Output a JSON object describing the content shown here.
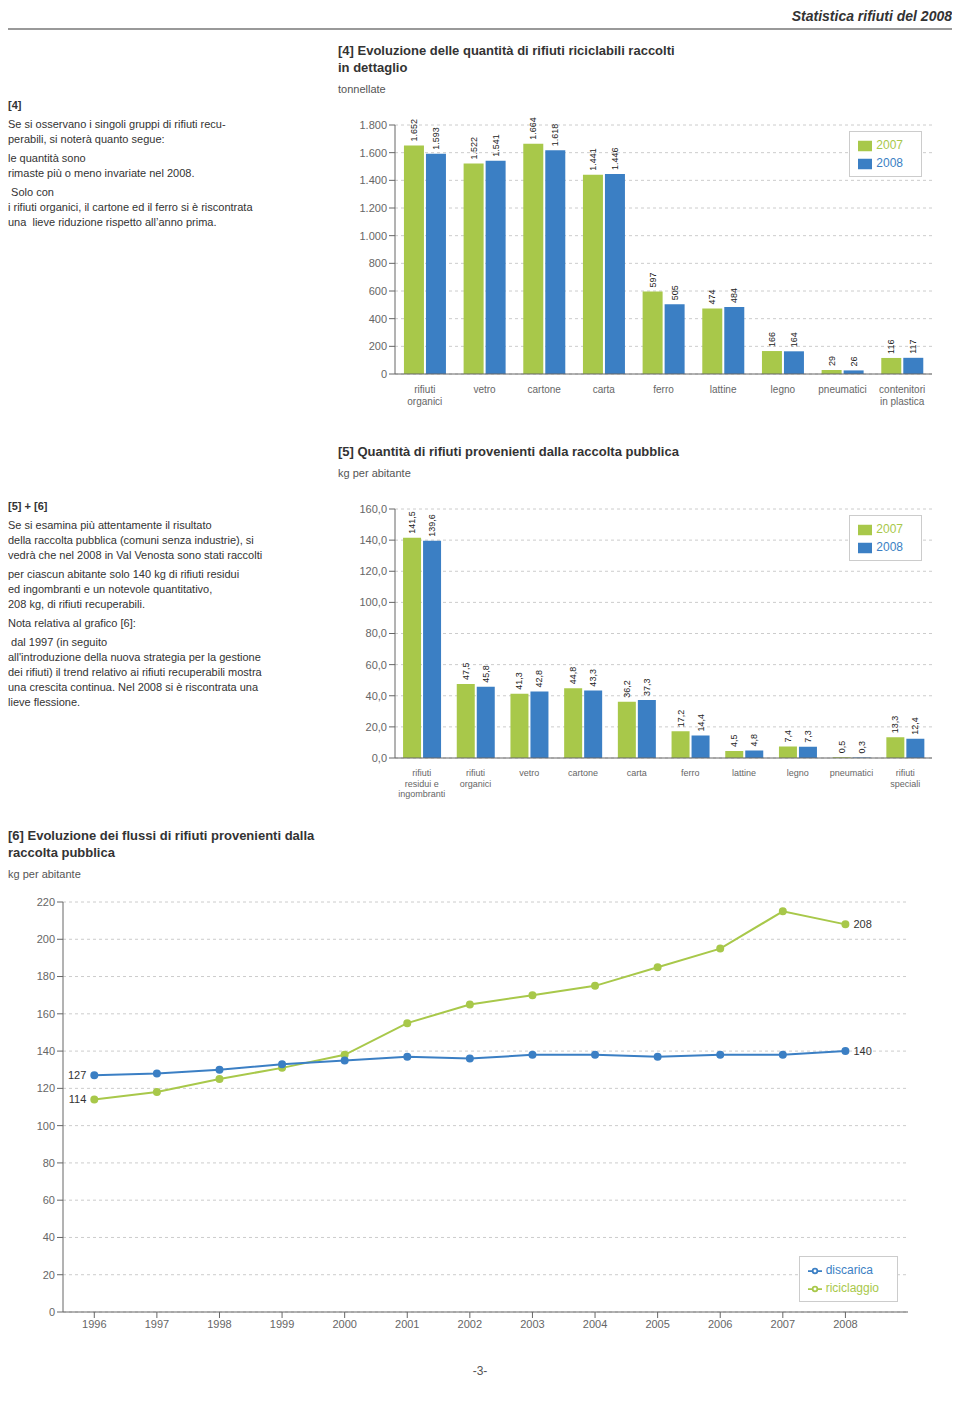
{
  "chart_data": [
    {
      "type": "bar",
      "title": "[4] Evoluzione delle quantità di rifiuti riciclabili raccolti\nin dettaglio",
      "ylabel": "tonnellate",
      "categories": [
        "rifiuti\norganici",
        "vetro",
        "cartone",
        "carta",
        "ferro",
        "lattine",
        "legno",
        "pneumatici",
        "contenitori\nin plastica"
      ],
      "series": [
        {
          "name": "2007",
          "color": "#a8c84a",
          "values": [
            1652,
            1522,
            1664,
            1441,
            597,
            474,
            166,
            29,
            116
          ],
          "value_labels": [
            "1.652",
            "1.522",
            "1.664",
            "1.441",
            "597",
            "474",
            "166",
            "29",
            "116"
          ]
        },
        {
          "name": "2008",
          "color": "#3b7fc4",
          "values": [
            1593,
            1541,
            1618,
            1446,
            505,
            484,
            164,
            26,
            117
          ],
          "value_labels": [
            "1.593",
            "1.541",
            "1.618",
            "1.446",
            "505",
            "484",
            "164",
            "26",
            "117"
          ]
        }
      ],
      "ylim": [
        0,
        1800
      ],
      "yticks": [
        0,
        200,
        400,
        600,
        800,
        {
          "value": 1000,
          "label": "1.000"
        },
        {
          "value": 1200,
          "label": "1.200"
        },
        {
          "value": 1400,
          "label": "1.400"
        },
        {
          "value": 1600,
          "label": "1.600"
        },
        {
          "value": 1800,
          "label": "1.800"
        }
      ],
      "grid": true,
      "legend": "upper right",
      "data_labels": true,
      "annotations": [
        {
          "text": "Statistica rifiuti del 2008"
        },
        {
          "text": "[4]"
        },
        {
          "text": "Se si osservano i singoli gruppi di rifiuti recu-\nperabili, si noterà quanto segue: "
        },
        {
          "text": "le quantità sono\nrimaste più o meno invariate nel 2008."
        },
        {
          "text": " Solo con\ni rifiuti organici, il cartone ed il ferro si è riscontrata\nuna  lieve riduzione rispetto all’anno prima."
        }
      ]
    },
    {
      "type": "bar",
      "title": "[5] Quantità di rifiuti provenienti dalla raccolta pubblica",
      "ylabel": "kg per abitante",
      "categories": [
        "rifiuti\nresidui e\ningombranti",
        "rifiuti\norganici",
        "vetro",
        "cartone",
        "carta",
        "ferro",
        "lattine",
        "legno",
        "pneumatici",
        "rifiuti\nspeciali"
      ],
      "series": [
        {
          "name": "2007",
          "color": "#a8c84a",
          "values": [
            141.5,
            47.5,
            41.3,
            44.8,
            36.2,
            17.2,
            4.5,
            7.4,
            0.5,
            13.3
          ],
          "value_labels": [
            "141,5",
            "47,5",
            "41,3",
            "44,8",
            "36,2",
            "17,2",
            "4,5",
            "7,4",
            "0,5",
            "13,3"
          ]
        },
        {
          "name": "2008",
          "color": "#3b7fc4",
          "values": [
            139.6,
            45.8,
            42.8,
            43.3,
            37.3,
            14.4,
            4.8,
            7.3,
            0.3,
            12.4
          ],
          "value_labels": [
            "139,6",
            "45,8",
            "42,8",
            "43,3",
            "37,3",
            "14,4",
            "4,8",
            "7,3",
            "0,3",
            "12,4"
          ]
        }
      ],
      "ylim": [
        0,
        160
      ],
      "yticks": [
        {
          "value": 0,
          "label": "0,0"
        },
        {
          "value": 20,
          "label": "20,0"
        },
        {
          "value": 40,
          "label": "40,0"
        },
        {
          "value": 60,
          "label": "60,0"
        },
        {
          "value": 80,
          "label": "80,0"
        },
        {
          "value": 100,
          "label": "100,0"
        },
        {
          "value": 120,
          "label": "120,0"
        },
        {
          "value": 140,
          "label": "140,0"
        },
        {
          "value": 160,
          "label": "160,0"
        }
      ],
      "grid": true,
      "legend": "upper right",
      "data_labels": true,
      "annotations": [
        {
          "text": "[5] + [6]"
        },
        {
          "text": "Se si esamina più attentamente il risultato\ndella raccolta pubblica (comuni senza industrie), si\nvedrà che nel 2008 in Val Venosta sono stati raccolti"
        },
        {
          "text": "per ciascun abitante solo 140 kg di rifiuti residui\ned ingombranti e un notevole quantitativo,\n208 kg, di rifiuti recuperabili."
        },
        {
          "text": "Nota relativa al grafico [6]:"
        },
        {
          "text": " dal 1997 (in seguito\nall'introduzione della nuova strategia per la gestione\ndei rifiuti) il trend relativo ai rifiuti recuperabili mostra\nuna crescita continua. Nel 2008 si è riscontrata una\nlieve flessione."
        }
      ]
    },
    {
      "type": "line",
      "title": "[6] Evoluzione dei flussi di rifiuti provenienti dalla\nraccolta pubblica",
      "ylabel": "kg per abitante",
      "x": [
        1996,
        1997,
        1998,
        1999,
        2000,
        2001,
        2002,
        2003,
        2004,
        2005,
        2006,
        2007,
        2008
      ],
      "series": [
        {
          "name": "riciclaggio",
          "color": "#a8c84a",
          "values": [
            114,
            118,
            125,
            131,
            138,
            155,
            165,
            170,
            175,
            185,
            195,
            215,
            208
          ]
        },
        {
          "name": "discarica",
          "color": "#3b7fc4",
          "values": [
            127,
            128,
            130,
            133,
            135,
            137,
            136,
            138,
            138,
            137,
            138,
            138,
            140
          ]
        }
      ],
      "xlim": [
        1995.5,
        2009
      ],
      "xticks": [
        1996,
        1997,
        1998,
        1999,
        2000,
        2001,
        2002,
        2003,
        2004,
        2005,
        2006,
        2007,
        2008
      ],
      "ylim": [
        0,
        220
      ],
      "yticks": [
        0,
        20,
        40,
        60,
        80,
        100,
        120,
        140,
        160,
        180,
        200,
        220
      ],
      "grid": true,
      "legend": "lower right",
      "marker": "circle",
      "annotations": [
        {
          "text": "208",
          "x": 2008,
          "y": 208
        },
        {
          "text": "140",
          "x": 2008,
          "y": 140
        },
        {
          "text": "114",
          "x": 1996,
          "y": 114
        },
        {
          "text": "127",
          "x": 1996,
          "y": 127
        },
        {
          "text": "-3-"
        }
      ]
    }
  ]
}
